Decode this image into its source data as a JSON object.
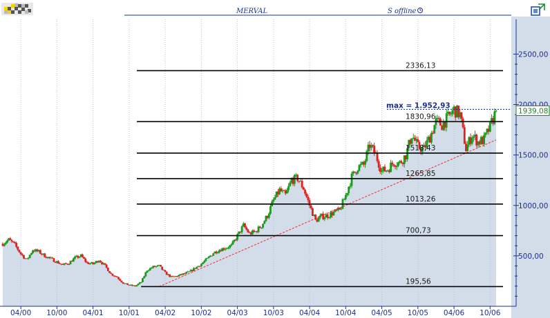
{
  "header": {
    "title": "MERVAL",
    "status": "S offline"
  },
  "colors": {
    "background": "#ffffff",
    "plot_fill": "#d3dce9",
    "axis": "#1b2f8f",
    "up_candle": "#1a9a1a",
    "down_candle": "#e02020",
    "fib_line": "#000000",
    "trend_line": "#e03030",
    "price_badge_text": "#1a8a1a"
  },
  "icons": {
    "logo": "checkered-logo-icon",
    "corner": "expand-window-icon",
    "clock": "clock-icon"
  },
  "chart_data": {
    "type": "candlestick",
    "title": "MERVAL",
    "x_ticks": [
      "04/00",
      "10/00",
      "04/01",
      "10/01",
      "04/02",
      "10/02",
      "04/03",
      "10/03",
      "04/04",
      "10/04",
      "04/05",
      "10/05",
      "04/06",
      "10/06"
    ],
    "y_ticks": [
      "2500,00",
      "2000,00",
      "1500,00",
      "1000,00",
      "500,00"
    ],
    "y_tick_values": [
      2500,
      2000,
      1500,
      1000,
      500
    ],
    "ylim": [
      0,
      2845
    ],
    "x_range": [
      "2000-01",
      "2006-11"
    ],
    "fibonacci_levels": [
      {
        "value": 2336.13,
        "label": "2336,13"
      },
      {
        "value": 1830.96,
        "label": "1830,96"
      },
      {
        "value": 1518.43,
        "label": "1518,43"
      },
      {
        "value": 1265.85,
        "label": "1265,85"
      },
      {
        "value": 1013.26,
        "label": "1013,26"
      },
      {
        "value": 700.73,
        "label": "700,73"
      },
      {
        "value": 195.56,
        "label": "195,56"
      }
    ],
    "max_annotation": {
      "label": "max = 1.952,93",
      "value": 1952.93
    },
    "last_price": {
      "label": "1939,08",
      "value": 1939.08
    },
    "trend_line": {
      "from": [
        "2002-03",
        195.56
      ],
      "to": [
        "2006-11",
        1650
      ]
    },
    "price_path": [
      [
        "2000-01",
        620
      ],
      [
        "2000-02",
        660
      ],
      [
        "2000-03",
        610
      ],
      [
        "2000-04",
        520
      ],
      [
        "2000-05",
        460
      ],
      [
        "2000-06",
        560
      ],
      [
        "2000-07",
        540
      ],
      [
        "2000-08",
        500
      ],
      [
        "2000-09",
        470
      ],
      [
        "2000-10",
        440
      ],
      [
        "2000-11",
        410
      ],
      [
        "2000-12",
        430
      ],
      [
        "2001-01",
        480
      ],
      [
        "2001-02",
        500
      ],
      [
        "2001-03",
        430
      ],
      [
        "2001-04",
        420
      ],
      [
        "2001-05",
        460
      ],
      [
        "2001-06",
        400
      ],
      [
        "2001-07",
        320
      ],
      [
        "2001-08",
        290
      ],
      [
        "2001-09",
        230
      ],
      [
        "2001-10",
        210
      ],
      [
        "2001-11",
        200
      ],
      [
        "2001-12",
        240
      ],
      [
        "2002-01",
        360
      ],
      [
        "2002-02",
        390
      ],
      [
        "2002-03",
        400
      ],
      [
        "2002-04",
        330
      ],
      [
        "2002-05",
        290
      ],
      [
        "2002-06",
        300
      ],
      [
        "2002-07",
        320
      ],
      [
        "2002-08",
        340
      ],
      [
        "2002-09",
        380
      ],
      [
        "2002-10",
        420
      ],
      [
        "2002-11",
        470
      ],
      [
        "2002-12",
        530
      ],
      [
        "2003-01",
        560
      ],
      [
        "2003-02",
        580
      ],
      [
        "2003-03",
        600
      ],
      [
        "2003-04",
        700
      ],
      [
        "2003-05",
        800
      ],
      [
        "2003-06",
        720
      ],
      [
        "2003-07",
        740
      ],
      [
        "2003-08",
        800
      ],
      [
        "2003-09",
        900
      ],
      [
        "2003-10",
        1050
      ],
      [
        "2003-11",
        1150
      ],
      [
        "2003-12",
        1100
      ],
      [
        "2004-01",
        1250
      ],
      [
        "2004-02",
        1270
      ],
      [
        "2004-03",
        1170
      ],
      [
        "2004-04",
        1000
      ],
      [
        "2004-05",
        850
      ],
      [
        "2004-06",
        890
      ],
      [
        "2004-07",
        900
      ],
      [
        "2004-08",
        930
      ],
      [
        "2004-09",
        950
      ],
      [
        "2004-10",
        1100
      ],
      [
        "2004-11",
        1280
      ],
      [
        "2004-12",
        1380
      ],
      [
        "2005-01",
        1400
      ],
      [
        "2005-02",
        1600
      ],
      [
        "2005-03",
        1500
      ],
      [
        "2005-04",
        1340
      ],
      [
        "2005-05",
        1360
      ],
      [
        "2005-06",
        1430
      ],
      [
        "2005-07",
        1420
      ],
      [
        "2005-08",
        1500
      ],
      [
        "2005-09",
        1700
      ],
      [
        "2005-10",
        1580
      ],
      [
        "2005-11",
        1560
      ],
      [
        "2005-12",
        1680
      ],
      [
        "2006-01",
        1830
      ],
      [
        "2006-02",
        1800
      ],
      [
        "2006-03",
        1870
      ],
      [
        "2006-04",
        1950
      ],
      [
        "2006-05",
        1900
      ],
      [
        "2006-06",
        1560
      ],
      [
        "2006-07",
        1700
      ],
      [
        "2006-08",
        1630
      ],
      [
        "2006-09",
        1650
      ],
      [
        "2006-10",
        1780
      ],
      [
        "2006-11",
        1939
      ]
    ]
  }
}
